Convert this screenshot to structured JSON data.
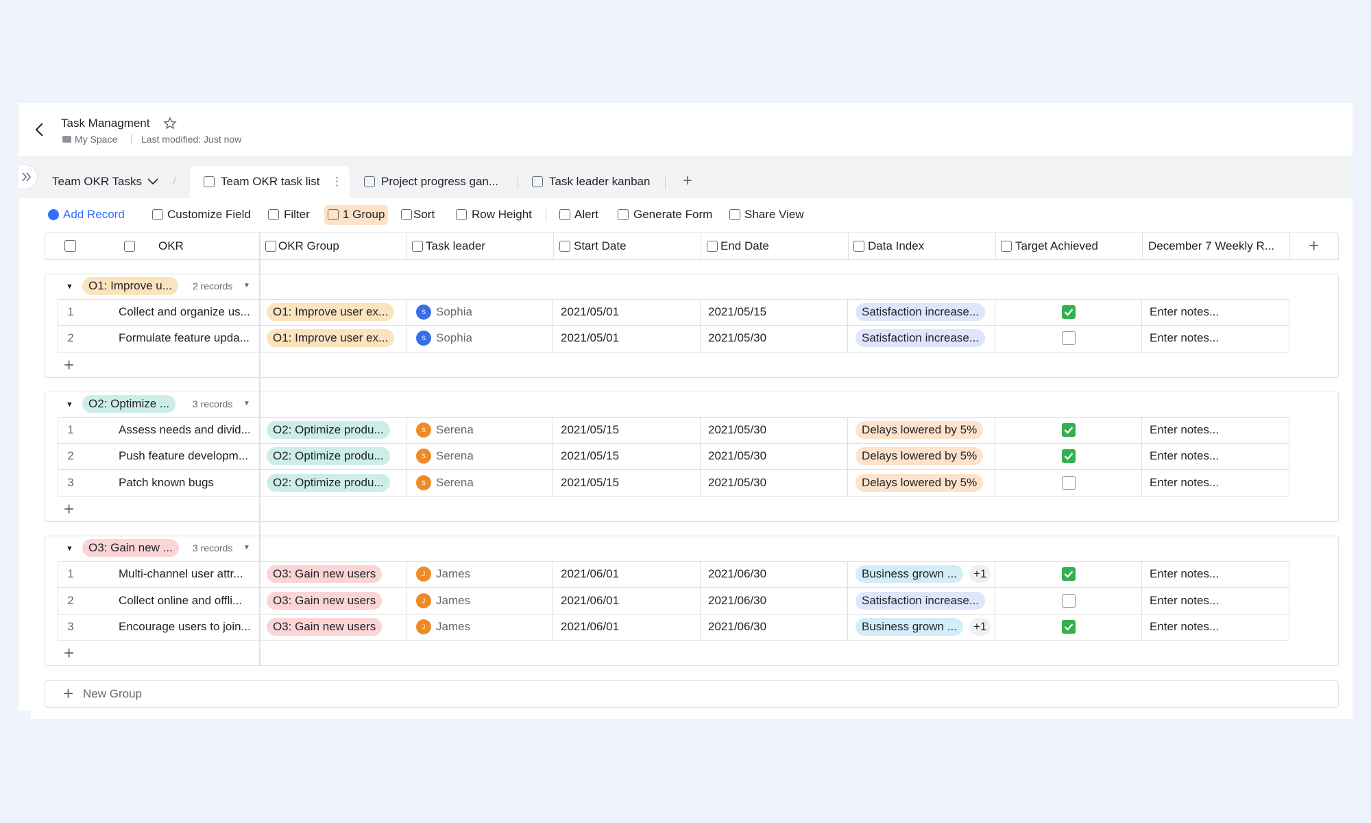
{
  "header": {
    "title": "Task Managment",
    "location": "My Space",
    "modified": "Last modified: Just now"
  },
  "tabs": {
    "view_group": "Team OKR Tasks",
    "items": [
      "Team OKR task list",
      "Project progress gan...",
      "Task leader kanban"
    ]
  },
  "toolbar": [
    "Add Record",
    "Customize Field",
    "Filter",
    "1 Group",
    "Sort",
    "Row Height",
    "Alert",
    "Generate Form",
    "Share View"
  ],
  "table": {
    "columns": [
      "OKR",
      "OKR Group",
      "Task leader",
      "Start Date",
      "End Date",
      "Data Index",
      "Target Achieved",
      "December 7 Weekly R..."
    ],
    "groups": [
      {
        "label": "O1: Improve u...",
        "count": "2 records",
        "rows": [
          {
            "index": "1",
            "okr": "Collect and organize us...",
            "group": "O1: Improve user ex...",
            "avatar": "S",
            "leader": "Sophia",
            "start": "2021/05/01",
            "end": "2021/05/15",
            "data_index": "Satisfaction increase...",
            "achieved": true,
            "notes": "Enter notes..."
          },
          {
            "index": "2",
            "okr": "Formulate feature upda...",
            "group": "O1: Improve user ex...",
            "avatar": "S",
            "leader": "Sophia",
            "start": "2021/05/01",
            "end": "2021/05/30",
            "data_index": "Satisfaction increase...",
            "achieved": false,
            "notes": "Enter notes..."
          }
        ]
      },
      {
        "label": "O2: Optimize ...",
        "count": "3 records",
        "rows": [
          {
            "index": "1",
            "okr": "Assess needs and divid...",
            "group": "O2: Optimize produ...",
            "avatar": "S",
            "leader": "Serena",
            "start": "2021/05/15",
            "end": "2021/05/30",
            "data_index": "Delays lowered by 5%",
            "achieved": true,
            "notes": "Enter notes..."
          },
          {
            "index": "2",
            "okr": "Push feature developm...",
            "group": "O2: Optimize produ...",
            "avatar": "S",
            "leader": "Serena",
            "start": "2021/05/15",
            "end": "2021/05/30",
            "data_index": "Delays lowered by 5%",
            "achieved": true,
            "notes": "Enter notes..."
          },
          {
            "index": "3",
            "okr": "Patch known bugs",
            "group": "O2: Optimize produ...",
            "avatar": "S",
            "leader": "Serena",
            "start": "2021/05/15",
            "end": "2021/05/30",
            "data_index": "Delays lowered by 5%",
            "achieved": false,
            "notes": "Enter notes..."
          }
        ]
      },
      {
        "label": "O3: Gain new ...",
        "count": "3 records",
        "rows": [
          {
            "index": "1",
            "okr": "Multi-channel user attr...",
            "group": "O3: Gain new users",
            "avatar": "J",
            "leader": "James",
            "start": "2021/06/01",
            "end": "2021/06/30",
            "data_index": "Business grown ...",
            "extra": "+1",
            "achieved": true,
            "notes": "Enter notes..."
          },
          {
            "index": "2",
            "okr": "Collect online and offli...",
            "group": "O3: Gain new users",
            "avatar": "J",
            "leader": "James",
            "start": "2021/06/01",
            "end": "2021/06/30",
            "data_index": "Satisfaction increase...",
            "achieved": false,
            "notes": "Enter notes..."
          },
          {
            "index": "3",
            "okr": "Encourage users to join...",
            "group": "O3: Gain new users",
            "avatar": "J",
            "leader": "James",
            "start": "2021/06/01",
            "end": "2021/06/30",
            "data_index": "Business grown ...",
            "extra": "+1",
            "achieved": true,
            "notes": "Enter notes..."
          }
        ]
      }
    ]
  },
  "new_group": "New Group"
}
